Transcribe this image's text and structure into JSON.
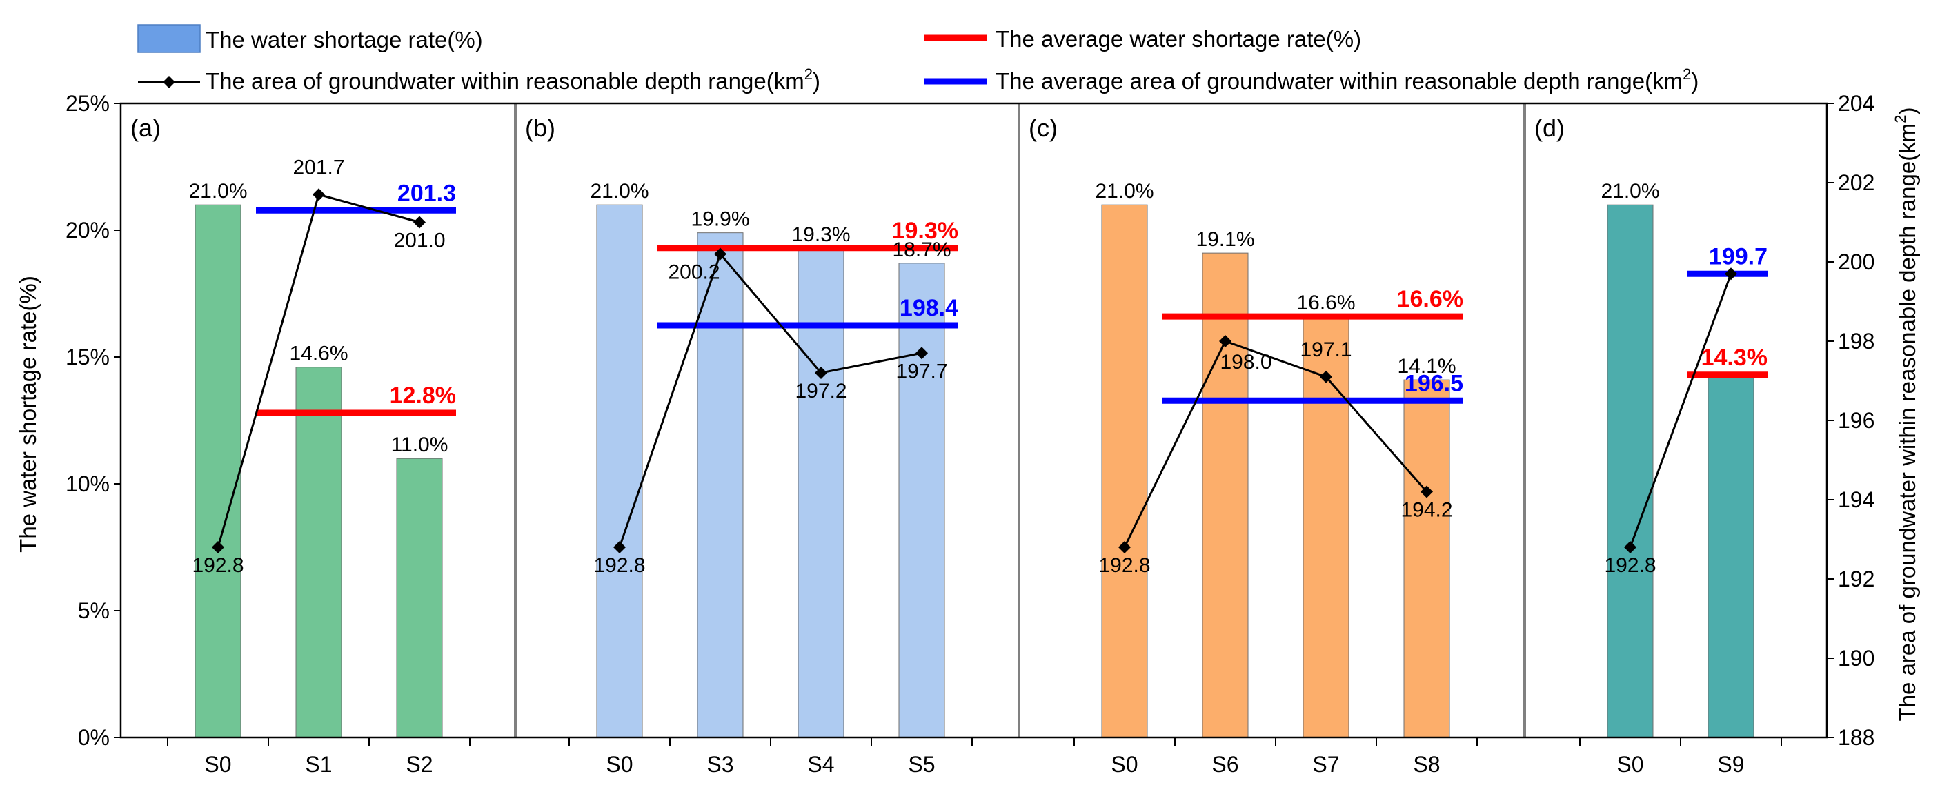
{
  "chart_data": {
    "type": "bar",
    "legend": {
      "bar": "The water shortage rate(%)",
      "line": "The area of groundwater within reasonable depth range(km",
      "avg_rate": "The average water shortage rate(%)",
      "avg_area": "The average area of groundwater within reasonable depth range(km",
      "unit_sup": "2",
      "close_paren": ")"
    },
    "y_left": {
      "label": "The water shortage rate(%)",
      "min": 0,
      "max": 25,
      "step": 5,
      "ticks": [
        "0%",
        "5%",
        "10%",
        "15%",
        "20%",
        "25%"
      ]
    },
    "y_right": {
      "label": "The area of groundwater within reasonable depth range(km",
      "unit_sup": "2",
      "close_paren": ")",
      "min": 188,
      "max": 204,
      "step": 2,
      "ticks": [
        "188",
        "190",
        "192",
        "194",
        "196",
        "198",
        "200",
        "202",
        "204"
      ]
    },
    "panels": [
      {
        "id": "(a)",
        "color": "#71c595",
        "categories": [
          "S0",
          "S1",
          "S2"
        ],
        "rate": [
          21.0,
          14.6,
          11.0
        ],
        "rate_labels": [
          "21.0%",
          "14.6%",
          "11.0%"
        ],
        "area": [
          192.8,
          201.7,
          201.0
        ],
        "area_labels": [
          "192.8",
          "201.7",
          "201.0"
        ],
        "avg_rate": 12.8,
        "avg_rate_label": "12.8%",
        "avg_area": 201.3,
        "avg_area_label": "201.3"
      },
      {
        "id": "(b)",
        "color": "#aecbf1",
        "categories": [
          "S0",
          "S3",
          "S4",
          "S5"
        ],
        "rate": [
          21.0,
          19.9,
          19.3,
          18.7
        ],
        "rate_labels": [
          "21.0%",
          "19.9%",
          "19.3%",
          "18.7%"
        ],
        "area": [
          192.8,
          200.2,
          197.2,
          197.7
        ],
        "area_labels": [
          "192.8",
          "200.2",
          "197.2",
          "197.7"
        ],
        "avg_rate": 19.3,
        "avg_rate_label": "19.3%",
        "avg_area": 198.4,
        "avg_area_label": "198.4"
      },
      {
        "id": "(c)",
        "color": "#fcae6b",
        "categories": [
          "S0",
          "S6",
          "S7",
          "S8"
        ],
        "rate": [
          21.0,
          19.1,
          16.6,
          14.1
        ],
        "rate_labels": [
          "21.0%",
          "19.1%",
          "16.6%",
          "14.1%"
        ],
        "area": [
          192.8,
          198.0,
          197.1,
          194.2
        ],
        "area_labels": [
          "192.8",
          "198.0",
          "197.1",
          "194.2"
        ],
        "avg_rate": 16.6,
        "avg_rate_label": "16.6%",
        "avg_area": 196.5,
        "avg_area_label": "196.5"
      },
      {
        "id": "(d)",
        "color": "#4dadac",
        "categories": [
          "S0",
          "S9"
        ],
        "rate": [
          21.0,
          14.3
        ],
        "rate_labels": [
          "21.0%",
          ""
        ],
        "area": [
          192.8,
          199.7
        ],
        "area_labels": [
          "192.8",
          ""
        ],
        "avg_rate": 14.3,
        "avg_rate_label": "14.3%",
        "avg_area": 199.7,
        "avg_area_label": "199.7"
      }
    ],
    "colors": {
      "avg_rate": "#ff0000",
      "avg_area": "#0000ff",
      "legend_bar": "#6a9ee6",
      "line": "#000000",
      "divider": "#808080"
    }
  }
}
